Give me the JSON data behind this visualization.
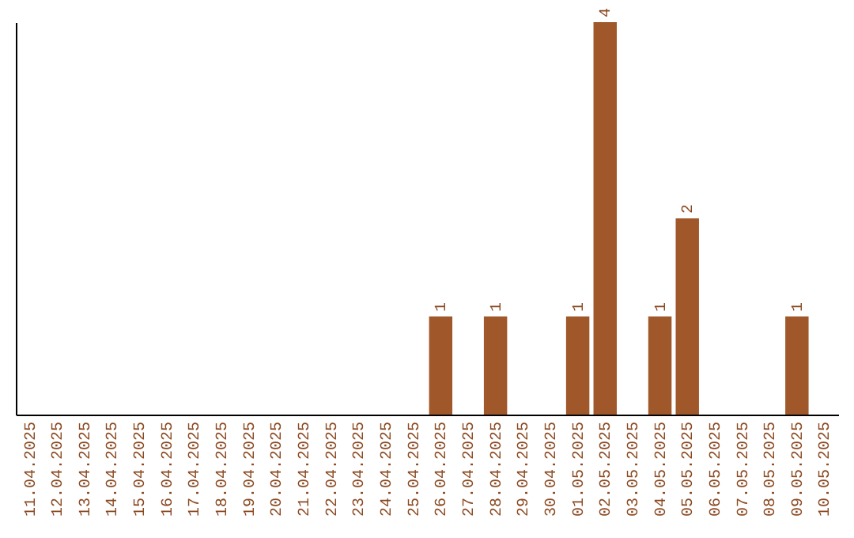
{
  "chart_data": {
    "type": "bar",
    "categories": [
      "11.04.2025",
      "12.04.2025",
      "13.04.2025",
      "14.04.2025",
      "15.04.2025",
      "16.04.2025",
      "17.04.2025",
      "18.04.2025",
      "19.04.2025",
      "20.04.2025",
      "21.04.2025",
      "22.04.2025",
      "23.04.2025",
      "24.04.2025",
      "25.04.2025",
      "26.04.2025",
      "27.04.2025",
      "28.04.2025",
      "29.04.2025",
      "30.04.2025",
      "01.05.2025",
      "02.05.2025",
      "03.05.2025",
      "04.05.2025",
      "05.05.2025",
      "06.05.2025",
      "07.05.2025",
      "08.05.2025",
      "09.05.2025",
      "10.05.2025"
    ],
    "values": [
      null,
      null,
      null,
      null,
      null,
      null,
      null,
      null,
      null,
      null,
      null,
      null,
      null,
      null,
      null,
      1,
      null,
      1,
      null,
      null,
      1,
      4,
      null,
      1,
      2,
      null,
      null,
      null,
      1,
      null
    ],
    "color": "#a0582a",
    "data_labels": true
  }
}
